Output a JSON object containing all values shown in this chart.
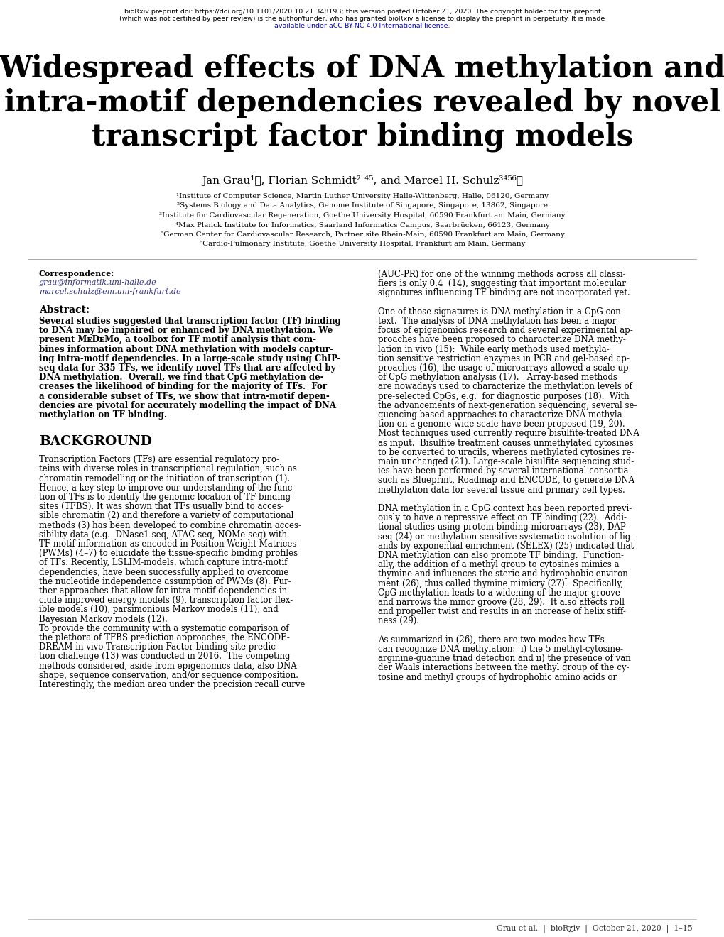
{
  "background_color": "#ffffff",
  "title_line1": "Widespread effects of DNA methylation and",
  "title_line2": "intra-motif dependencies revealed by novel",
  "title_line3": "transcript factor binding models",
  "authors": "Jan Grau¹✉, Florian Schmidt²ʳ⁴⁵, and Marcel H. Schulz³⁴⁵⁶✉",
  "affiliations": [
    "¹Institute of Computer Science, Martin Luther University Halle-Wittenberg, Halle, 06120, Germany",
    "²Systems Biology and Data Analytics, Genome Institute of Singapore, Singapore, 13862, Singapore",
    "³Institute for Cardiovascular Regeneration, Goethe University Hospital, 60590 Frankfurt am Main, Germany",
    "⁴Max Planck Institute for Informatics, Saarland Informatics Campus, Saarbrücken, 66123, Germany",
    "⁵German Center for Cardiovascular Research, Partner site Rhein-Main, 60590 Frankfurt am Main, Germany",
    "⁶Cardio-Pulmonary Institute, Goethe University Hospital, Frankfurt am Main, Germany"
  ],
  "correspondence_label": "Correspondence:",
  "correspondence_email1": "grau@informatik.uni-halle.de",
  "correspondence_email2": "marcel.schulz@em.uni-frankfurt.de",
  "abstract_label": "Abstract:",
  "abstract_lines": [
    "Several studies suggested that transcription factor (TF) binding",
    "to DNA may be impaired or enhanced by DNA methylation. We",
    "present MᴇDᴇMo, a toolbox for TF motif analysis that com-",
    "bines information about DNA methylation with models captur-",
    "ing intra-motif dependencies. In a large-scale study using ChIP-",
    "seq data for 335 TFs, we identify novel TFs that are affected by",
    "DNA methylation.  Overall, we find that CpG methylation de-",
    "creases the likelihood of binding for the majority of TFs.  For",
    "a considerable subset of TFs, we show that intra-motif depen-",
    "dencies are pivotal for accurately modelling the impact of DNA",
    "methylation on TF binding."
  ],
  "background_heading": "BACKGROUND",
  "bg_lines": [
    "Transcription Factors (TFs) are essential regulatory pro-",
    "teins with diverse roles in transcriptional regulation, such as",
    "chromatin remodelling or the initiation of transcription (1).",
    "Hence, a key step to improve our understanding of the func-",
    "tion of TFs is to identify the genomic location of TF binding",
    "sites (TFBS). It was shown that TFs usually bind to acces-",
    "sible chromatin (2) and therefore a variety of computational",
    "methods (3) has been developed to combine chromatin acces-",
    "sibility data (e.g.  DNase1-seq, ATAC-seq, NOMe-seq) with",
    "TF motif information as encoded in Position Weight Matrices",
    "(PWMs) (4–7) to elucidate the tissue-specific binding profiles",
    "of TFs. Recently, LSLIM-models, which capture intra-motif",
    "dependencies, have been successfully applied to overcome",
    "the nucleotide independence assumption of PWMs (8). Fur-",
    "ther approaches that allow for intra-motif dependencies in-",
    "clude improved energy models (9), transcription factor flex-",
    "ible models (10), parsimonious Markov models (11), and",
    "Bayesian Markov models (12).",
    "To provide the community with a systematic comparison of",
    "the plethora of TFBS prediction approaches, the ENCODE-",
    "DREAM in vivo Transcription Factor binding site predic-",
    "tion challenge (13) was conducted in 2016.  The competing",
    "methods considered, aside from epigenomics data, also DNA",
    "shape, sequence conservation, and/or sequence composition.",
    "Interestingly, the median area under the precision recall curve"
  ],
  "right_lines": [
    "(AUC-PR) for one of the winning methods across all classi-",
    "fiers is only 0.4  (14), suggesting that important molecular",
    "signatures influencing TF binding are not incorporated yet.",
    "",
    "One of those signatures is DNA methylation in a CpG con-",
    "text.  The analysis of DNA methylation has been a major",
    "focus of epigenomics research and several experimental ap-",
    "proaches have been proposed to characterize DNA methy-",
    "lation in vivo (15):  While early methods used methyla-",
    "tion sensitive restriction enzymes in PCR and gel-based ap-",
    "proaches (16), the usage of microarrays allowed a scale-up",
    "of CpG methylation analysis (17).   Array-based methods",
    "are nowadays used to characterize the methylation levels of",
    "pre-selected CpGs, e.g.  for diagnostic purposes (18).  With",
    "the advancements of next-generation sequencing, several se-",
    "quencing based approaches to characterize DNA methyla-",
    "tion on a genome-wide scale have been proposed (19, 20).",
    "Most techniques used currently require bisulfite-treated DNA",
    "as input.  Bisulfite treatment causes unmethylated cytosines",
    "to be converted to uracils, whereas methylated cytosines re-",
    "main unchanged (21). Large-scale bisulfite sequencing stud-",
    "ies have been performed by several international consortia",
    "such as Blueprint, Roadmap and ENCODE, to generate DNA",
    "methylation data for several tissue and primary cell types.",
    "",
    "DNA methylation in a CpG context has been reported previ-",
    "ously to have a repressive effect on TF binding (22).  Addi-",
    "tional studies using protein binding microarrays (23), DAP-",
    "seq (24) or methylation-sensitive systematic evolution of lig-",
    "ands by exponential enrichment (SELEX) (25) indicated that",
    "DNA methylation can also promote TF binding.  Function-",
    "ally, the addition of a methyl group to cytosines mimics a",
    "thymine and influences the steric and hydrophobic environ-",
    "ment (26), thus called thymine mimicry (27).  Specifically,",
    "CpG methylation leads to a widening of the major groove",
    "and narrows the minor groove (28, 29).  It also affects roll",
    "and propeller twist and results in an increase of helix stiff-",
    "ness (29).",
    "",
    "As summarized in (26), there are two modes how TFs",
    "can recognize DNA methylation:  i) the 5 methyl-cytosine-",
    "arginine-guanine triad detection and ii) the presence of van",
    "der Waals interactions between the methyl group of the cy-",
    "tosine and methyl groups of hydrophobic amino acids or"
  ],
  "footer_text": "Grau et al.  |  bioRχiv  |  October 21, 2020  |  1–15"
}
